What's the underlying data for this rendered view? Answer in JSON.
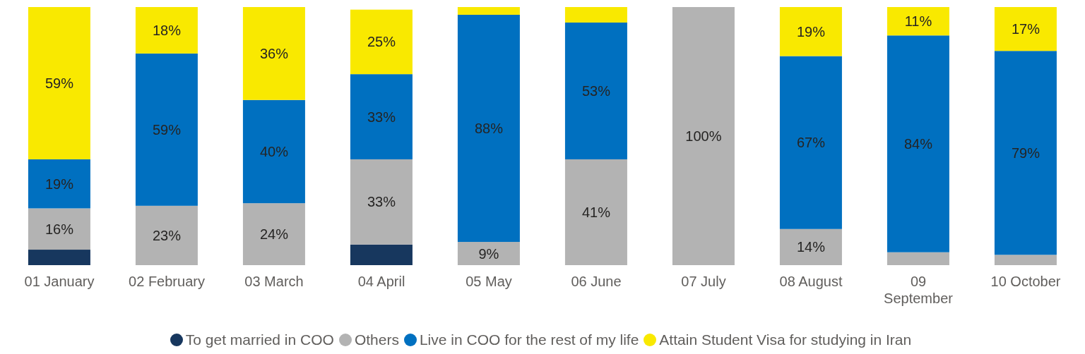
{
  "chart_data": {
    "type": "bar",
    "stacked": true,
    "categories": [
      "01 January",
      "02 February",
      "03 March",
      "04 April",
      "05 May",
      "06 June",
      "07 July",
      "08 August",
      "09 September",
      "10 October"
    ],
    "ylim": [
      0,
      100
    ],
    "series": [
      {
        "name": "To get married in COO",
        "color": "#17375e",
        "values": [
          6,
          0,
          0,
          8,
          0,
          0,
          0,
          0,
          0,
          0
        ],
        "value_labels": [
          null,
          null,
          null,
          null,
          null,
          null,
          null,
          null,
          null,
          null
        ]
      },
      {
        "name": "Others",
        "color": "#b3b3b3",
        "values": [
          16,
          23,
          24,
          33,
          9,
          41,
          100,
          14,
          5,
          4
        ],
        "value_labels": [
          "16%",
          "23%",
          "24%",
          "33%",
          "9%",
          "41%",
          "100%",
          "14%",
          null,
          null
        ]
      },
      {
        "name": "Live in COO for the rest of my life",
        "color": "#0070c0",
        "values": [
          19,
          59,
          40,
          33,
          88,
          53,
          0,
          67,
          84,
          79
        ],
        "value_labels": [
          "19%",
          "59%",
          "40%",
          "33%",
          "88%",
          "53%",
          null,
          "67%",
          "84%",
          "79%"
        ]
      },
      {
        "name": "Attain Student Visa for studying in Iran",
        "color": "#f9e900",
        "values": [
          59,
          18,
          36,
          25,
          3,
          6,
          0,
          19,
          11,
          17
        ],
        "value_labels": [
          "59%",
          "18%",
          "36%",
          "25%",
          null,
          null,
          null,
          "19%",
          "11%",
          "17%"
        ]
      }
    ],
    "legend": "bottom",
    "grid": false
  }
}
